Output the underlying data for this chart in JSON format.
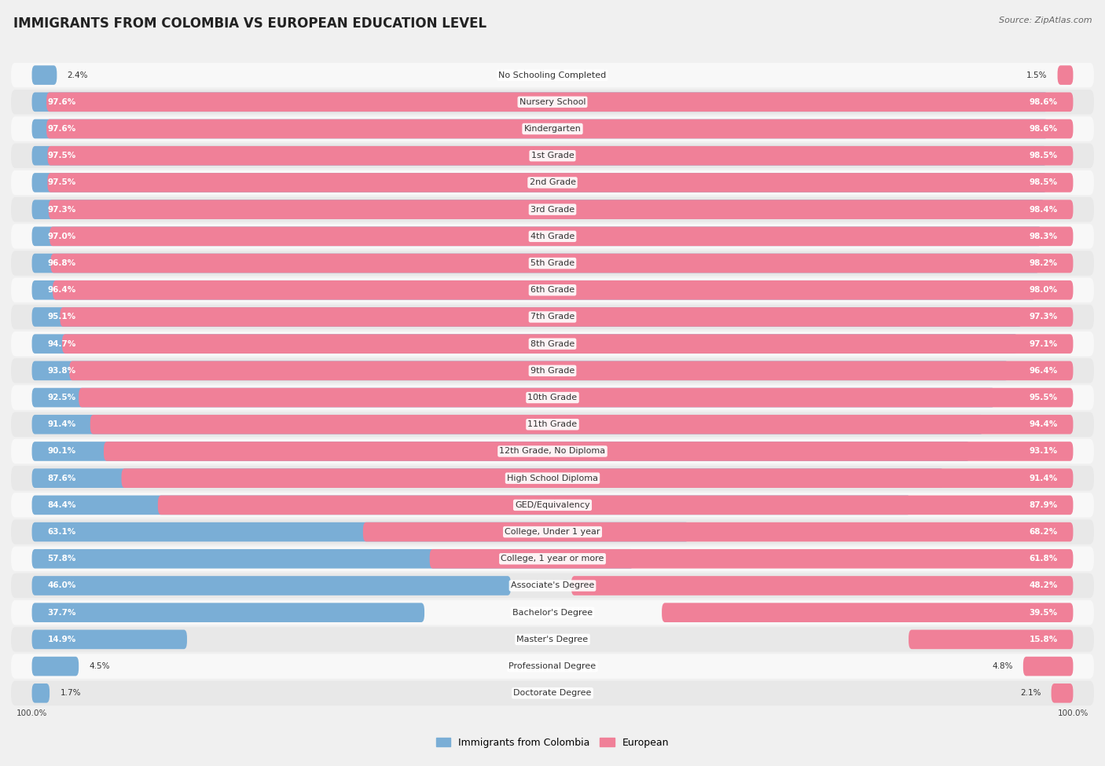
{
  "title": "IMMIGRANTS FROM COLOMBIA VS EUROPEAN EDUCATION LEVEL",
  "source": "Source: ZipAtlas.com",
  "categories": [
    "No Schooling Completed",
    "Nursery School",
    "Kindergarten",
    "1st Grade",
    "2nd Grade",
    "3rd Grade",
    "4th Grade",
    "5th Grade",
    "6th Grade",
    "7th Grade",
    "8th Grade",
    "9th Grade",
    "10th Grade",
    "11th Grade",
    "12th Grade, No Diploma",
    "High School Diploma",
    "GED/Equivalency",
    "College, Under 1 year",
    "College, 1 year or more",
    "Associate's Degree",
    "Bachelor's Degree",
    "Master's Degree",
    "Professional Degree",
    "Doctorate Degree"
  ],
  "colombia_values": [
    2.4,
    97.6,
    97.6,
    97.5,
    97.5,
    97.3,
    97.0,
    96.8,
    96.4,
    95.1,
    94.7,
    93.8,
    92.5,
    91.4,
    90.1,
    87.6,
    84.4,
    63.1,
    57.8,
    46.0,
    37.7,
    14.9,
    4.5,
    1.7
  ],
  "european_values": [
    1.5,
    98.6,
    98.6,
    98.5,
    98.5,
    98.4,
    98.3,
    98.2,
    98.0,
    97.3,
    97.1,
    96.4,
    95.5,
    94.4,
    93.1,
    91.4,
    87.9,
    68.2,
    61.8,
    48.2,
    39.5,
    15.8,
    4.8,
    2.1
  ],
  "colombia_color": "#7aaed6",
  "european_color": "#f08098",
  "background_color": "#f0f0f0",
  "row_color_light": "#f8f8f8",
  "row_color_dark": "#e8e8e8",
  "legend_colombia": "Immigrants from Colombia",
  "legend_european": "European",
  "title_fontsize": 12,
  "label_fontsize": 8,
  "value_fontsize": 7.5
}
